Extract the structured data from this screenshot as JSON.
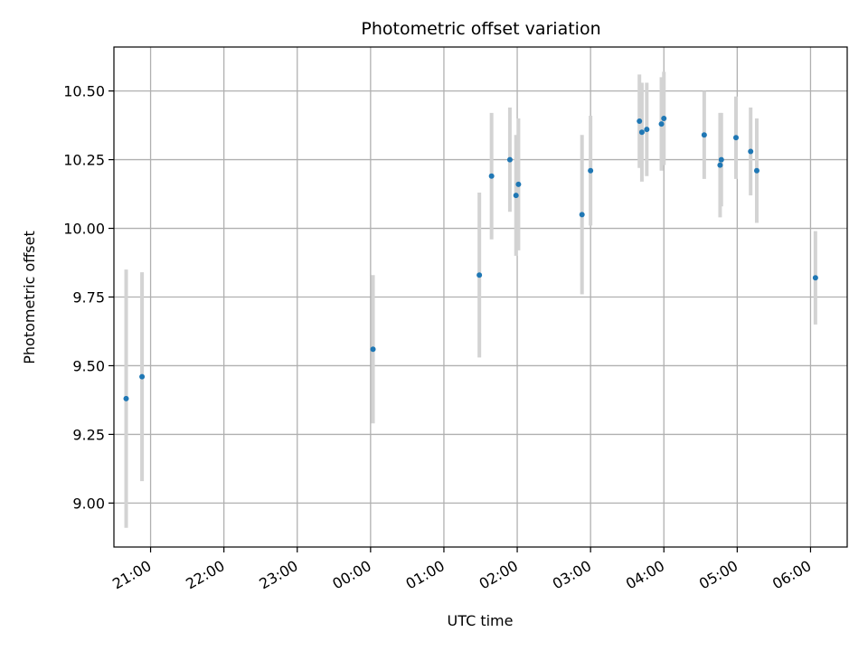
{
  "chart_data": {
    "type": "scatter",
    "title": "Photometric offset variation",
    "xlabel": "UTC time",
    "ylabel": "Photometric offset",
    "x_axis": {
      "kind": "time",
      "range": [
        "20:30",
        "06:30"
      ],
      "ticks": [
        "21:00",
        "22:00",
        "23:00",
        "00:00",
        "01:00",
        "02:00",
        "03:00",
        "04:00",
        "05:00",
        "06:00"
      ]
    },
    "y_axis": {
      "range": [
        8.84,
        10.66
      ],
      "ticks": [
        "9.00",
        "9.25",
        "9.50",
        "9.75",
        "10.00",
        "10.25",
        "10.50"
      ]
    },
    "grid": true,
    "colors": {
      "point": "#1f77b4",
      "errorbar": "#d3d3d3"
    },
    "points": [
      {
        "x": "20:40",
        "y": 9.38,
        "err": 0.47
      },
      {
        "x": "20:53",
        "y": 9.46,
        "err": 0.38
      },
      {
        "x": "00:02",
        "y": 9.56,
        "err": 0.27
      },
      {
        "x": "01:29",
        "y": 9.83,
        "err": 0.3
      },
      {
        "x": "01:39",
        "y": 10.19,
        "err": 0.23
      },
      {
        "x": "01:54",
        "y": 10.25,
        "err": 0.19
      },
      {
        "x": "01:59",
        "y": 10.12,
        "err": 0.22
      },
      {
        "x": "02:01",
        "y": 10.16,
        "err": 0.24
      },
      {
        "x": "02:53",
        "y": 10.05,
        "err": 0.29
      },
      {
        "x": "03:00",
        "y": 10.21,
        "err": 0.2
      },
      {
        "x": "03:40",
        "y": 10.39,
        "err": 0.17
      },
      {
        "x": "03:42",
        "y": 10.35,
        "err": 0.18
      },
      {
        "x": "03:46",
        "y": 10.36,
        "err": 0.17
      },
      {
        "x": "03:58",
        "y": 10.38,
        "err": 0.17
      },
      {
        "x": "04:00",
        "y": 10.4,
        "err": 0.17
      },
      {
        "x": "04:33",
        "y": 10.34,
        "err": 0.16
      },
      {
        "x": "04:46",
        "y": 10.23,
        "err": 0.19
      },
      {
        "x": "04:47",
        "y": 10.25,
        "err": 0.17
      },
      {
        "x": "04:59",
        "y": 10.33,
        "err": 0.15
      },
      {
        "x": "05:11",
        "y": 10.28,
        "err": 0.16
      },
      {
        "x": "05:16",
        "y": 10.21,
        "err": 0.19
      },
      {
        "x": "06:04",
        "y": 9.82,
        "err": 0.17
      }
    ]
  }
}
